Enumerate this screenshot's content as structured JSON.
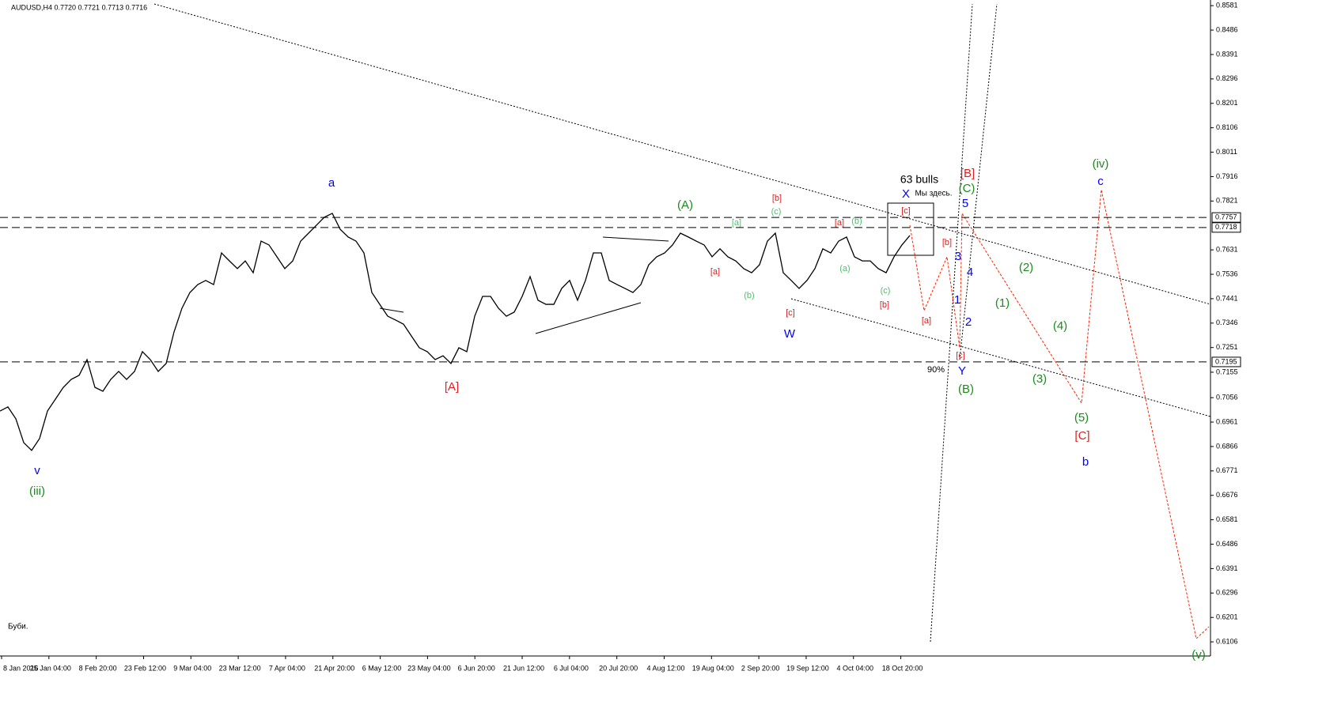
{
  "chart_data": {
    "type": "line",
    "title": "AUDUSD,H4  0.7720 0.7721 0.7713 0.7716",
    "footer": "Буби.",
    "values": [
      0.7004,
      0.702,
      0.6974,
      0.6881,
      0.6851,
      0.6897,
      0.7004,
      0.705,
      0.7096,
      0.7127,
      0.7143,
      0.7204,
      0.7096,
      0.7081,
      0.7127,
      0.7158,
      0.7127,
      0.7158,
      0.7235,
      0.7204,
      0.7158,
      0.7189,
      0.7312,
      0.7404,
      0.7465,
      0.7496,
      0.7512,
      0.7496,
      0.7619,
      0.7588,
      0.7558,
      0.7588,
      0.7542,
      0.7665,
      0.765,
      0.7604,
      0.7558,
      0.7588,
      0.7665,
      0.7696,
      0.7727,
      0.7758,
      0.7773,
      0.7711,
      0.7681,
      0.7665,
      0.7619,
      0.7465,
      0.7419,
      0.7373,
      0.7358,
      0.7342,
      0.7296,
      0.725,
      0.7235,
      0.7204,
      0.7219,
      0.7189,
      0.725,
      0.7235,
      0.7373,
      0.745,
      0.745,
      0.7404,
      0.7373,
      0.7389,
      0.745,
      0.7527,
      0.7435,
      0.7419,
      0.7419,
      0.7481,
      0.7512,
      0.7435,
      0.7512,
      0.7619,
      0.7619,
      0.7512,
      0.7496,
      0.7481,
      0.7465,
      0.7496,
      0.7573,
      0.7604,
      0.7619,
      0.765,
      0.7696,
      0.7681,
      0.7665,
      0.765,
      0.7604,
      0.7635,
      0.7604,
      0.7588,
      0.7558,
      0.7542,
      0.7573,
      0.7665,
      0.7696,
      0.7542,
      0.7512,
      0.7481,
      0.7512,
      0.7558,
      0.7635,
      0.7619,
      0.7665,
      0.7681,
      0.7604,
      0.7588,
      0.7588,
      0.7558,
      0.7542,
      0.7604,
      0.765,
      0.7687
    ],
    "color": "#000000",
    "x_tick_labels": [
      "8 Jan 2016",
      "25 Jan 04:00",
      "8 Feb 20:00",
      "23 Feb 12:00",
      "9 Mar 04:00",
      "23 Mar 12:00",
      "7 Apr 04:00",
      "21 Apr 20:00",
      "6 May 12:00",
      "23 May 04:00",
      "6 Jun 20:00",
      "21 Jun 12:00",
      "6 Jul 04:00",
      "20 Jul 20:00",
      "4 Aug 12:00",
      "19 Aug 04:00",
      "2 Sep 20:00",
      "19 Sep 12:00",
      "4 Oct 04:00",
      "18 Oct 20:00"
    ],
    "ylim": [
      0.6051,
      0.8603
    ],
    "yticks": [
      0.8581,
      0.8486,
      0.8391,
      0.8296,
      0.8201,
      0.8106,
      0.8011,
      0.7916,
      0.7821,
      0.7631,
      0.7536,
      0.7441,
      0.7346,
      0.7251,
      0.7155,
      0.7056,
      0.6961,
      0.6866,
      0.6771,
      0.6676,
      0.6581,
      0.6486,
      0.6391,
      0.6296,
      0.6201,
      0.6106
    ],
    "hlines": [
      0.7757,
      0.7718,
      0.7195
    ],
    "wave_labels": [
      {
        "text": "v",
        "color": "#0000ff"
      },
      {
        "text": "a",
        "color": "#0000ff"
      },
      {
        "text": "W",
        "color": "#0000ff"
      },
      {
        "text": "X",
        "color": "#0000ff"
      },
      {
        "text": "Y",
        "color": "#0000ff"
      },
      {
        "text": "5",
        "color": "#0000ff"
      },
      {
        "text": "3",
        "color": "#0000ff"
      },
      {
        "text": "4",
        "color": "#0000ff"
      },
      {
        "text": "1",
        "color": "#0000ff"
      },
      {
        "text": "2",
        "color": "#0000ff"
      },
      {
        "text": "c",
        "color": "#0000ff"
      },
      {
        "text": "b",
        "color": "#0000ff"
      },
      {
        "text": "(iii)",
        "color": "#1a8c1a"
      },
      {
        "text": "(A)",
        "color": "#1a8c1a"
      },
      {
        "text": "(C)",
        "color": "#1a8c1a"
      },
      {
        "text": "(B)",
        "color": "#1a8c1a"
      },
      {
        "text": "(iv)",
        "color": "#1a8c1a"
      },
      {
        "text": "(1)",
        "color": "#1a8c1a"
      },
      {
        "text": "(2)",
        "color": "#1a8c1a"
      },
      {
        "text": "(3)",
        "color": "#1a8c1a"
      },
      {
        "text": "(4)",
        "color": "#1a8c1a"
      },
      {
        "text": "(5)",
        "color": "#1a8c1a"
      },
      {
        "text": "(v)",
        "color": "#1a8c1a"
      },
      {
        "text": "[a]",
        "color": "#4fbf6f"
      },
      {
        "text": "(c)",
        "color": "#4fbf6f"
      },
      {
        "text": "(b)",
        "color": "#4fbf6f"
      },
      {
        "text": "(b)",
        "color": "#4fbf6f"
      },
      {
        "text": "(a)",
        "color": "#4fbf6f"
      },
      {
        "text": "(c)",
        "color": "#4fbf6f"
      },
      {
        "text": "[A]",
        "color": "#e02020"
      },
      {
        "text": "[a]",
        "color": "#e02020"
      },
      {
        "text": "[b]",
        "color": "#e02020"
      },
      {
        "text": "[c]",
        "color": "#e02020"
      },
      {
        "text": "[a]",
        "color": "#e02020"
      },
      {
        "text": "[b]",
        "color": "#e02020"
      },
      {
        "text": "[c]",
        "color": "#e02020"
      },
      {
        "text": "[B]",
        "color": "#e02020"
      },
      {
        "text": "[a]",
        "color": "#e02020"
      },
      {
        "text": "[b]",
        "color": "#e02020"
      },
      {
        "text": "[c]",
        "color": "#e02020"
      },
      {
        "text": "[C]",
        "color": "#e02020"
      }
    ],
    "notes": [
      "63 bulls",
      "Мы здесь.",
      "90%"
    ]
  }
}
